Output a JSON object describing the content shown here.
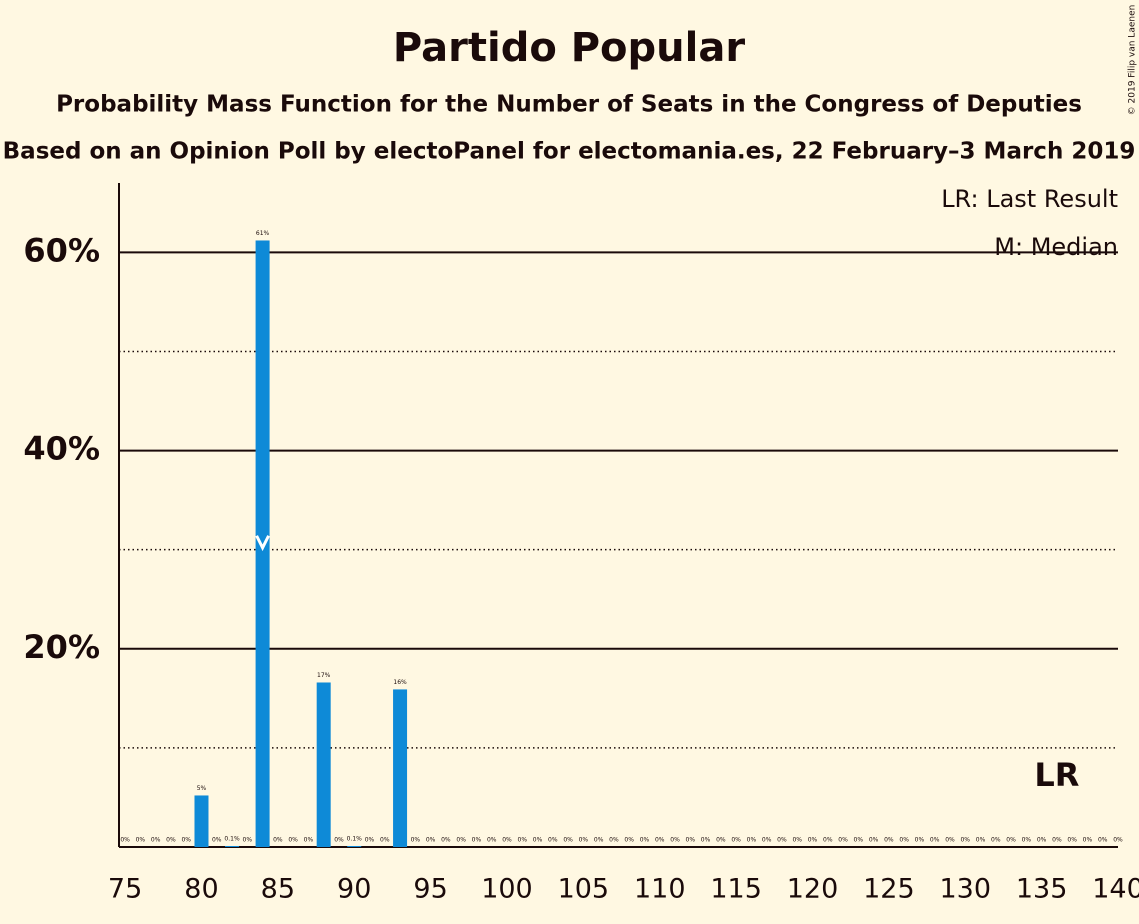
{
  "chart_data": {
    "type": "bar",
    "title": "Partido Popular",
    "subtitle": "Probability Mass Function for the Number of Seats in the Congress of Deputies",
    "subtitle2": "Based on an Opinion Poll by electoPanel for electomania.es, 22 February–3 March 2019",
    "copyright": "© 2019 Filip van Laenen",
    "legend": [
      "LR: Last Result",
      "M: Median"
    ],
    "color": "#0e8ad7",
    "x": [
      75,
      76,
      77,
      78,
      79,
      80,
      81,
      82,
      83,
      84,
      85,
      86,
      87,
      88,
      89,
      90,
      91,
      92,
      93,
      94,
      95,
      96,
      97,
      98,
      99,
      100,
      101,
      102,
      103,
      104,
      105,
      106,
      107,
      108,
      109,
      110,
      111,
      112,
      113,
      114,
      115,
      116,
      117,
      118,
      119,
      120,
      121,
      122,
      123,
      124,
      125,
      126,
      127,
      128,
      129,
      130,
      131,
      132,
      133,
      134,
      135,
      136,
      137,
      138,
      139,
      140
    ],
    "values": [
      0,
      0,
      0,
      0,
      0,
      5.2,
      0,
      0.1,
      0,
      61.2,
      0,
      0,
      0,
      16.6,
      0,
      0.1,
      0,
      0,
      15.9,
      0,
      0,
      0,
      0,
      0,
      0,
      0,
      0,
      0,
      0,
      0,
      0,
      0,
      0,
      0,
      0,
      0,
      0,
      0,
      0,
      0,
      0,
      0,
      0,
      0,
      0,
      0,
      0,
      0,
      0,
      0,
      0,
      0,
      0,
      0,
      0,
      0,
      0,
      0,
      0,
      0,
      0,
      0,
      0,
      0,
      0,
      0
    ],
    "value_labels": [
      "0%",
      "0%",
      "0%",
      "0%",
      "0%",
      "5%",
      "0%",
      "0.1%",
      "0%",
      "61%",
      "0%",
      "0%",
      "0%",
      "17%",
      "0%",
      "0.1%",
      "0%",
      "0%",
      "16%",
      "0%",
      "0%",
      "0%",
      "0%",
      "0%",
      "0%",
      "0%",
      "0%",
      "0%",
      "0%",
      "0%",
      "0%",
      "0%",
      "0%",
      "0%",
      "0%",
      "0%",
      "0%",
      "0%",
      "0%",
      "0%",
      "0%",
      "0%",
      "0%",
      "0%",
      "0%",
      "0%",
      "0%",
      "0%",
      "0%",
      "0%",
      "0%",
      "0%",
      "0%",
      "0%",
      "0%",
      "0%",
      "0%",
      "0%",
      "0%",
      "0%",
      "0%",
      "0%",
      "0%",
      "0%",
      "0%",
      "0%"
    ],
    "median": 84,
    "last_result": {
      "value": 136,
      "label": "LR"
    },
    "xlim": [
      74.6,
      140
    ],
    "xticks": [
      75,
      80,
      85,
      90,
      95,
      100,
      105,
      110,
      115,
      120,
      125,
      130,
      135,
      140
    ],
    "ylim": [
      0,
      67
    ],
    "yticks": [
      {
        "value": 20,
        "label": "20%"
      },
      {
        "value": 40,
        "label": "40%"
      },
      {
        "value": 60,
        "label": "60%"
      }
    ],
    "minor_yticks": [
      10,
      30,
      50
    ],
    "grid": true
  }
}
